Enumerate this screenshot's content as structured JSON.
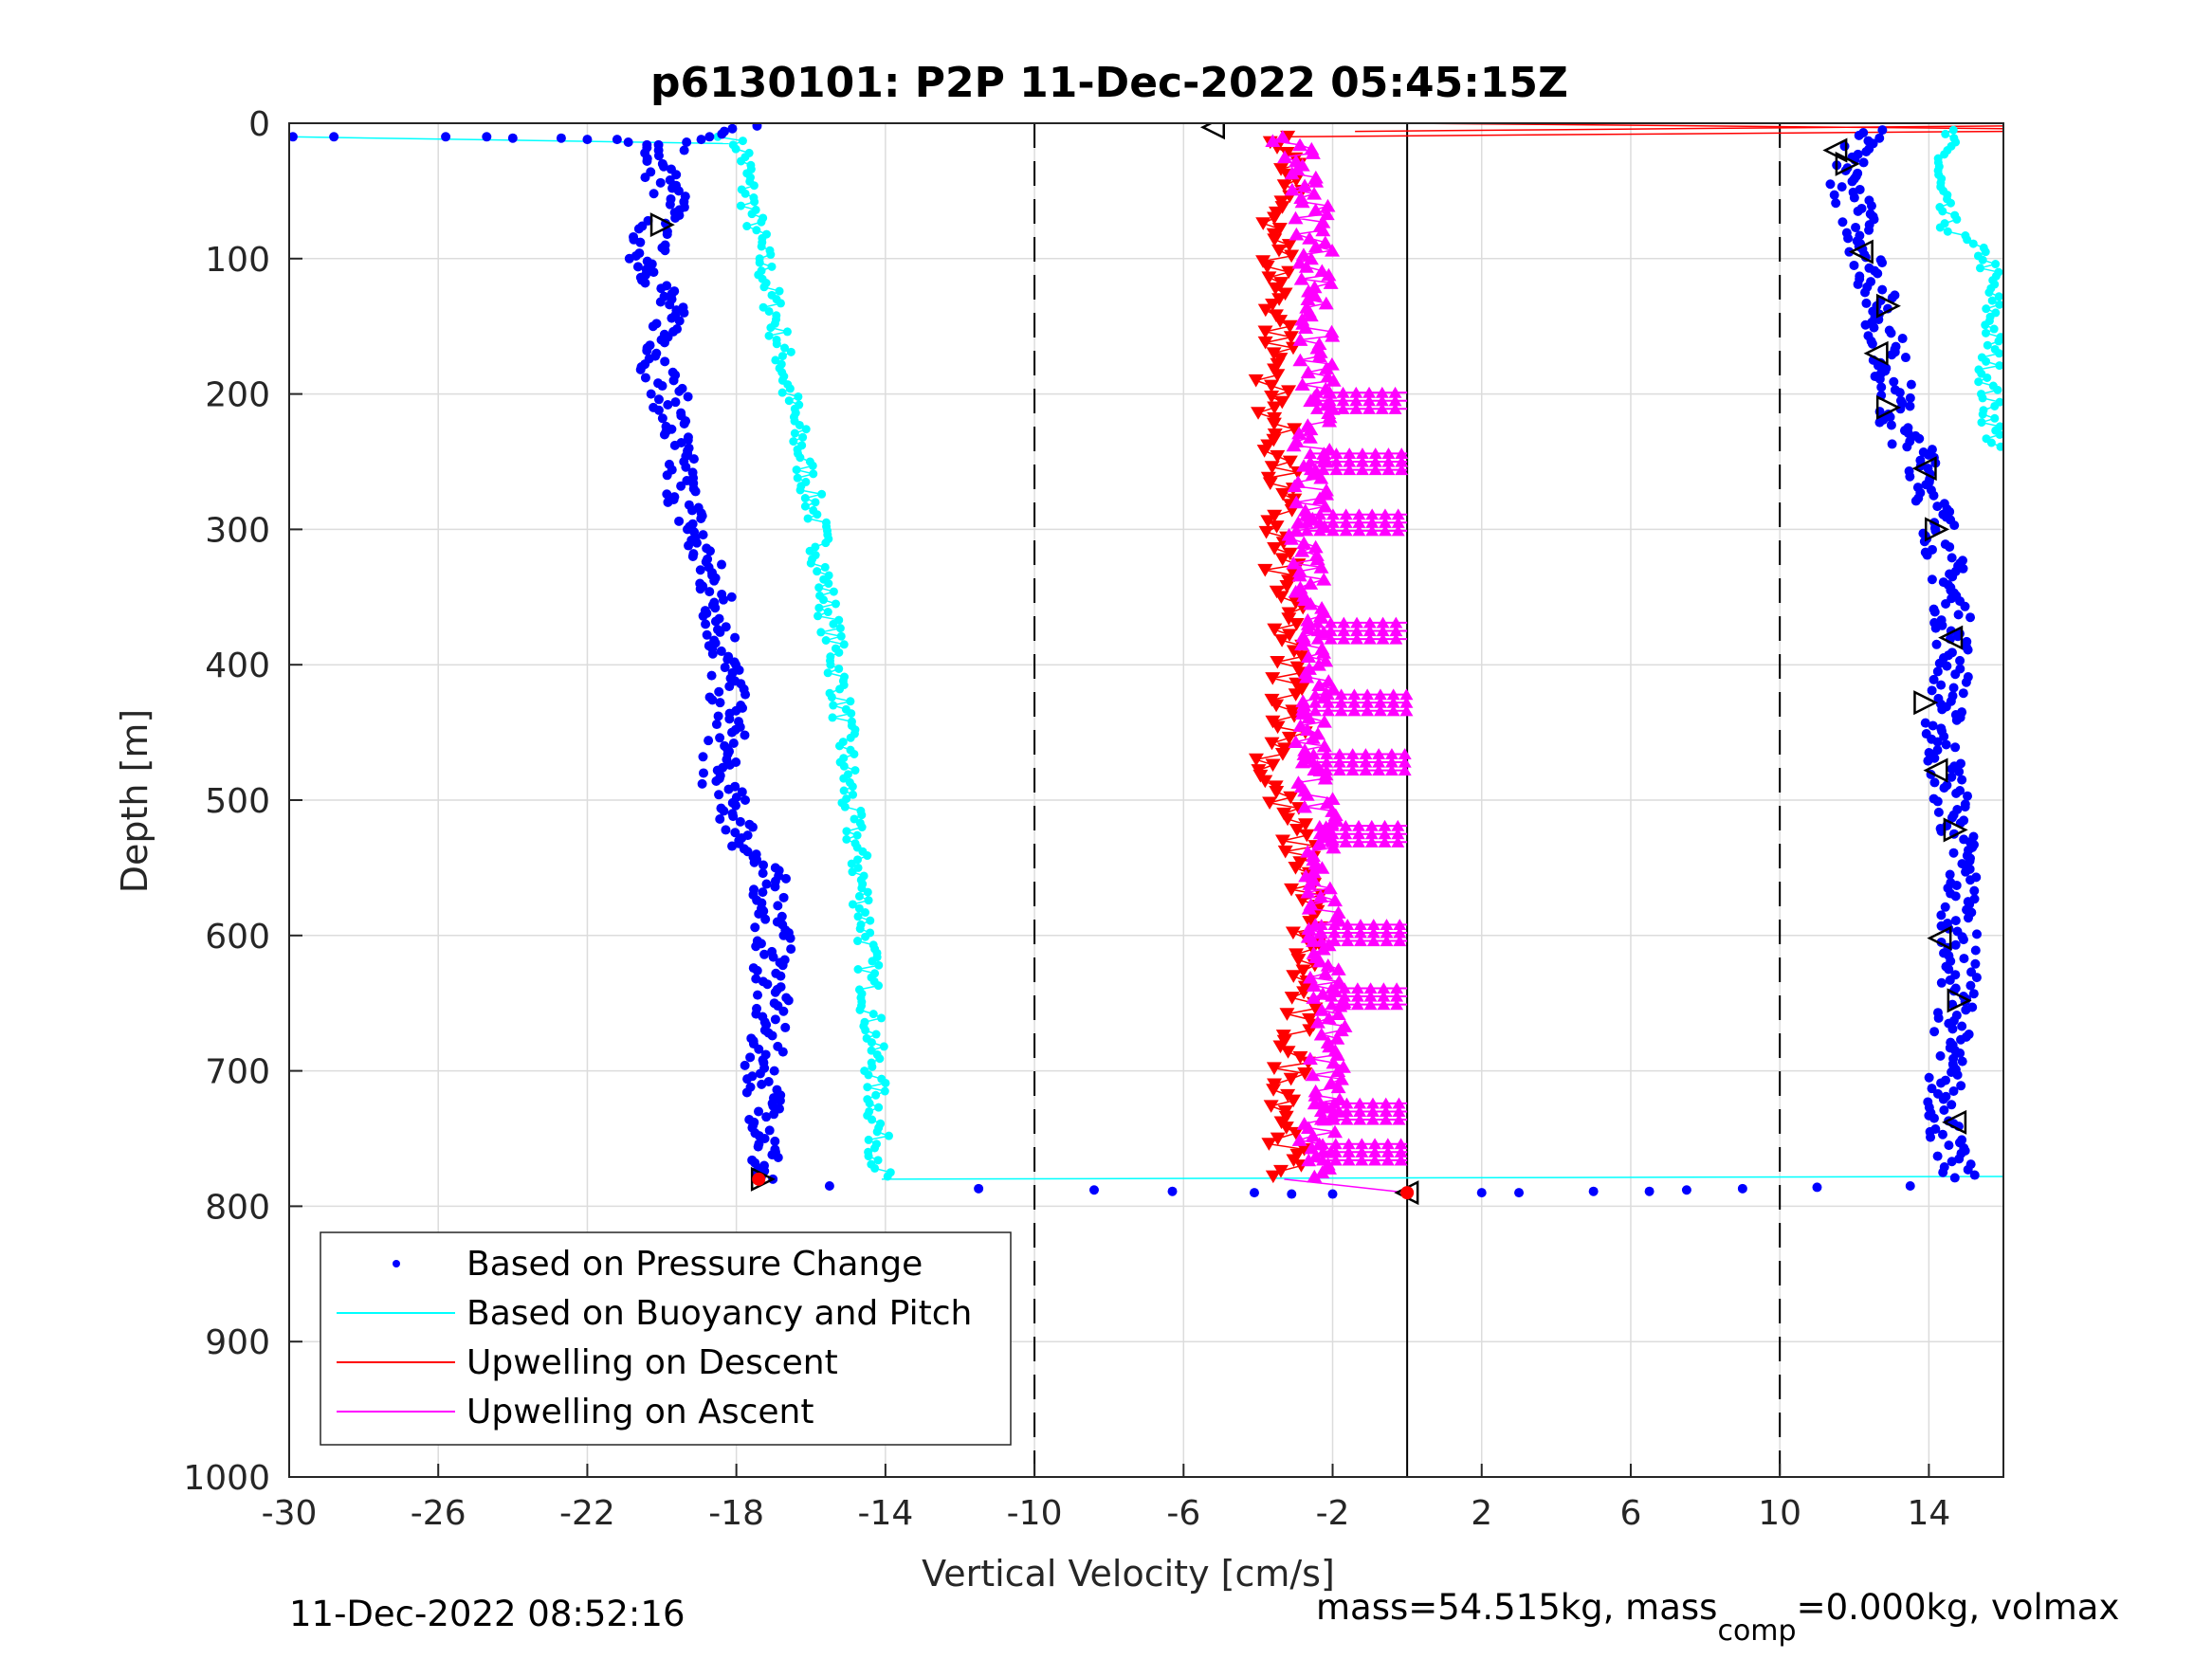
{
  "chart_data": {
    "type": "scatter",
    "title": "p6130101: P2P 11-Dec-2022 05:45:15Z",
    "xlabel": "Vertical Velocity [cm/s]",
    "ylabel": "Depth [m]",
    "xlim": [
      -30,
      16
    ],
    "ylim": [
      0,
      1000
    ],
    "y_reversed": true,
    "grid": true,
    "xticks": [
      -30,
      -26,
      -22,
      -18,
      -14,
      -10,
      -6,
      -2,
      2,
      6,
      10,
      14
    ],
    "xtick_labels": [
      "-30",
      "-26",
      "-22",
      "-18",
      "-14",
      "-10",
      "-6",
      "-2",
      "2",
      "6",
      "10",
      "14"
    ],
    "yticks": [
      0,
      100,
      200,
      300,
      400,
      500,
      600,
      700,
      800,
      900,
      1000
    ],
    "ytick_labels": [
      "0",
      "100",
      "200",
      "300",
      "400",
      "500",
      "600",
      "700",
      "800",
      "900",
      "1000"
    ],
    "vlines": [
      {
        "x": -10,
        "style": "dashed",
        "color": "#000000"
      },
      {
        "x": 0,
        "style": "solid",
        "color": "#000000"
      },
      {
        "x": 10,
        "style": "dashed",
        "color": "#000000"
      }
    ],
    "legend_position": "bottom-left",
    "series": [
      {
        "name": "Based on Pressure Change",
        "marker": "dot",
        "color": "#0000ff",
        "descent": {
          "depth": [
            2,
            20,
            40,
            60,
            80,
            100,
            120,
            150,
            180,
            200,
            250,
            300,
            350,
            400,
            450,
            480,
            500,
            540,
            560,
            600,
            650,
            700,
            750,
            780
          ],
          "velocity": [
            -17.9,
            -20.2,
            -20,
            -19.7,
            -20.3,
            -20.4,
            -20,
            -19.8,
            -20.1,
            -19.8,
            -19.6,
            -19.2,
            -18.5,
            -18.3,
            -18.2,
            -18.6,
            -18.2,
            -17.6,
            -17.1,
            -17,
            -17.1,
            -17.3,
            -17.1,
            -17.4
          ]
        },
        "ascent": {
          "depth": [
            780,
            760,
            700,
            650,
            600,
            550,
            500,
            450,
            400,
            350,
            300,
            250,
            220,
            200,
            150,
            100,
            60,
            40,
            20,
            5
          ],
          "velocity": [
            14.8,
            14.5,
            14.4,
            14.8,
            14.8,
            14.9,
            14.6,
            14.3,
            14.7,
            14.6,
            14.3,
            13.9,
            13,
            13.1,
            12.8,
            12.4,
            12,
            11.8,
            11.9,
            12.4
          ]
        },
        "surface_points": {
          "depth": [
            10,
            10,
            10,
            10,
            11,
            11,
            12,
            12,
            14,
            16,
            20
          ],
          "velocity": [
            -29.9,
            -28.8,
            -25.8,
            -24.7,
            -24,
            -22.7,
            -22,
            -21.2,
            -20.9,
            -20.4,
            -19.4
          ]
        },
        "bottom_points": {
          "depth": [
            785,
            787,
            788,
            789,
            790,
            791,
            791,
            790,
            790,
            789,
            789,
            788,
            787,
            786,
            785
          ],
          "velocity": [
            -15.5,
            -11.5,
            -8.4,
            -6.3,
            -4.1,
            -3.1,
            -2,
            2,
            3,
            5,
            6.5,
            7.5,
            9,
            11,
            13.5
          ]
        }
      },
      {
        "name": "Based on Buoyancy and Pitch",
        "marker": "line+dot",
        "color": "#00ffff",
        "descent": {
          "depth": [
            10,
            20,
            50,
            100,
            150,
            200,
            250,
            300,
            350,
            400,
            450,
            500,
            550,
            600,
            650,
            700,
            750,
            780
          ],
          "velocity": [
            -18.2,
            -17.8,
            -17.7,
            -17.3,
            -16.9,
            -16.6,
            -16.2,
            -15.8,
            -15.6,
            -15.3,
            -15.1,
            -15,
            -14.7,
            -14.5,
            -14.4,
            -14.3,
            -14.2,
            -14.1
          ]
        },
        "ascent": {
          "depth": [
            240,
            200,
            150,
            100,
            80,
            60,
            40,
            20,
            5
          ],
          "velocity": [
            15.8,
            15.6,
            15.7,
            15.6,
            14.6,
            14.3,
            14.2,
            14.4,
            14.5
          ]
        }
      },
      {
        "name": "Upwelling on Descent",
        "marker": "triangle-down",
        "color": "#ff0000",
        "depth": [
          10,
          50,
          100,
          150,
          200,
          250,
          300,
          350,
          400,
          450,
          480,
          500,
          550,
          600,
          650,
          700,
          750,
          780
        ],
        "velocity": [
          -3.2,
          -3.3,
          -3.5,
          -3.4,
          -3.6,
          -3.4,
          -3.5,
          -3.3,
          -3.2,
          -3.1,
          -3.8,
          -3.4,
          -2.7,
          -2.7,
          -2.9,
          -3.1,
          -3.2,
          -3.3
        ]
      },
      {
        "name": "Upwelling on Ascent",
        "marker": "triangle-up",
        "color": "#ff00ff",
        "depth": [
          780,
          750,
          700,
          650,
          600,
          550,
          500,
          450,
          400,
          350,
          300,
          250,
          200,
          150,
          100,
          50,
          10
        ],
        "velocity": [
          -2,
          -2.4,
          -2.2,
          -2,
          -2.3,
          -2.3,
          -2.4,
          -2.6,
          -2.3,
          -2.5,
          -2.7,
          -2.6,
          -2.4,
          -2.5,
          -2.4,
          -2.6,
          -3.2
        ],
        "spike_depths": [
          205,
          250,
          295,
          375,
          428,
          472,
          525,
          598,
          645,
          730,
          760
        ],
        "spike_to_velocity": 0
      }
    ],
    "markers_open_triangles": [
      {
        "depth": 3,
        "velocity": -5.2
      },
      {
        "depth": 75,
        "velocity": -20
      },
      {
        "depth": 20,
        "velocity": 11.5
      },
      {
        "depth": 30,
        "velocity": 11.8
      },
      {
        "depth": 95,
        "velocity": 12.2
      },
      {
        "depth": 135,
        "velocity": 12.9
      },
      {
        "depth": 170,
        "velocity": 12.6
      },
      {
        "depth": 210,
        "velocity": 12.9
      },
      {
        "depth": 255,
        "velocity": 13.9
      },
      {
        "depth": 300,
        "velocity": 14.2
      },
      {
        "depth": 380,
        "velocity": 14.6
      },
      {
        "depth": 428,
        "velocity": 13.9
      },
      {
        "depth": 478,
        "velocity": 14.2
      },
      {
        "depth": 522,
        "velocity": 14.7
      },
      {
        "depth": 602,
        "velocity": 14.3
      },
      {
        "depth": 648,
        "velocity": 14.8
      },
      {
        "depth": 738,
        "velocity": 14.7
      },
      {
        "depth": 780,
        "velocity": -17.3
      },
      {
        "depth": 790,
        "velocity": 0
      }
    ],
    "top_red_lines": [
      {
        "from": [
          0,
          0
        ],
        "to": [
          16,
          4
        ]
      },
      {
        "from": [
          -3.3,
          10
        ],
        "to": [
          16,
          6
        ]
      },
      {
        "from": [
          -1.4,
          6
        ],
        "to": [
          16,
          2
        ]
      }
    ]
  },
  "footer": {
    "timestamp": "11-Dec-2022 08:52:16",
    "mass_text_pre": "mass=54.515kg, mass",
    "mass_sub": "comp",
    "mass_text_post": "=0.000kg, volmax"
  }
}
